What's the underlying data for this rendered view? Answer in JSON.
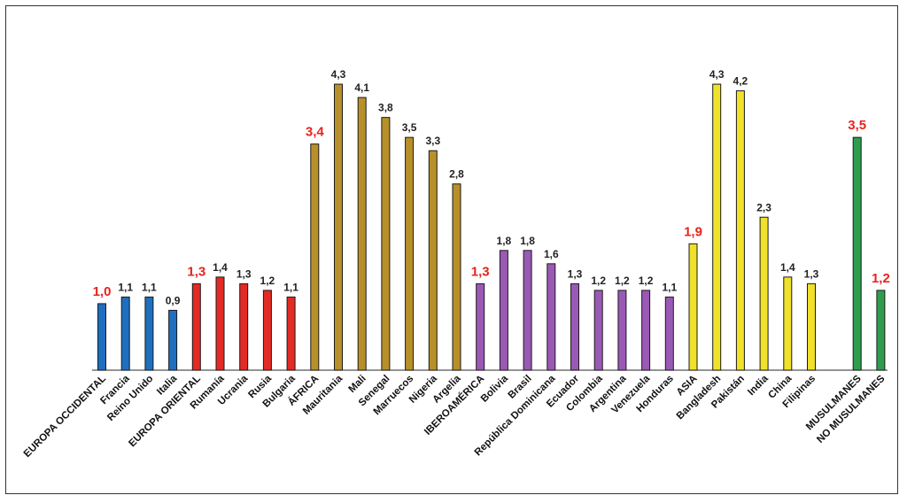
{
  "chart_data": {
    "type": "bar",
    "title": "",
    "xlabel": "",
    "ylabel": "",
    "ylim": [
      0,
      4.9
    ],
    "grid": false,
    "legend": "none",
    "groups": [
      {
        "name": "europa-occidental",
        "color": "#1f6fc0",
        "bars": [
          {
            "label": "EUROPA OCCIDENTAL",
            "value": 1.0,
            "text": "1,0",
            "aggregate": true
          },
          {
            "label": "Francia",
            "value": 1.1,
            "text": "1,1",
            "aggregate": false
          },
          {
            "label": "Reino Unido",
            "value": 1.1,
            "text": "1,1",
            "aggregate": false
          },
          {
            "label": "Italia",
            "value": 0.9,
            "text": "0,9",
            "aggregate": false
          }
        ]
      },
      {
        "name": "europa-oriental",
        "color": "#e32a24",
        "bars": [
          {
            "label": "EUROPA ORIENTAL",
            "value": 1.3,
            "text": "1,3",
            "aggregate": true
          },
          {
            "label": "Rumanía",
            "value": 1.4,
            "text": "1,4",
            "aggregate": false
          },
          {
            "label": "Ucrania",
            "value": 1.3,
            "text": "1,3",
            "aggregate": false
          },
          {
            "label": "Rusia",
            "value": 1.2,
            "text": "1,2",
            "aggregate": false
          },
          {
            "label": "Bulgaria",
            "value": 1.1,
            "text": "1,1",
            "aggregate": false
          }
        ]
      },
      {
        "name": "africa",
        "color": "#b8902a",
        "bars": [
          {
            "label": "ÁFRICA",
            "value": 3.4,
            "text": "3,4",
            "aggregate": true
          },
          {
            "label": "Mauritania",
            "value": 4.3,
            "text": "4,3",
            "aggregate": false
          },
          {
            "label": "Mali",
            "value": 4.1,
            "text": "4,1",
            "aggregate": false
          },
          {
            "label": "Senegal",
            "value": 3.8,
            "text": "3,8",
            "aggregate": false
          },
          {
            "label": "Marruecos",
            "value": 3.5,
            "text": "3,5",
            "aggregate": false
          },
          {
            "label": "Nigeria",
            "value": 3.3,
            "text": "3,3",
            "aggregate": false
          },
          {
            "label": "Argelia",
            "value": 2.8,
            "text": "2,8",
            "aggregate": false
          }
        ]
      },
      {
        "name": "iberoamerica",
        "color": "#9b59b6",
        "bars": [
          {
            "label": "IBEROAMÉRICA",
            "value": 1.3,
            "text": "1,3",
            "aggregate": true
          },
          {
            "label": "Bolivia",
            "value": 1.8,
            "text": "1,8",
            "aggregate": false
          },
          {
            "label": "Brasil",
            "value": 1.8,
            "text": "1,8",
            "aggregate": false
          },
          {
            "label": "República Dominicana",
            "value": 1.6,
            "text": "1,6",
            "aggregate": false
          },
          {
            "label": "Ecuador",
            "value": 1.3,
            "text": "1,3",
            "aggregate": false
          },
          {
            "label": "Colombia",
            "value": 1.2,
            "text": "1,2",
            "aggregate": false
          },
          {
            "label": "Argentina",
            "value": 1.2,
            "text": "1,2",
            "aggregate": false
          },
          {
            "label": "Venezuela",
            "value": 1.2,
            "text": "1,2",
            "aggregate": false
          },
          {
            "label": "Honduras",
            "value": 1.1,
            "text": "1,1",
            "aggregate": false
          }
        ]
      },
      {
        "name": "asia",
        "color": "#f0e12a",
        "bars": [
          {
            "label": "ASIA",
            "value": 1.9,
            "text": "1,9",
            "aggregate": true
          },
          {
            "label": "Bangladesh",
            "value": 4.3,
            "text": "4,3",
            "aggregate": false
          },
          {
            "label": "Pakistán",
            "value": 4.2,
            "text": "4,2",
            "aggregate": false
          },
          {
            "label": "India",
            "value": 2.3,
            "text": "2,3",
            "aggregate": false
          },
          {
            "label": "China",
            "value": 1.4,
            "text": "1,4",
            "aggregate": false
          },
          {
            "label": "Filipinas",
            "value": 1.3,
            "text": "1,3",
            "aggregate": false
          }
        ]
      },
      {
        "name": "musulmanes",
        "color": "#2e9e4e",
        "bars": [
          {
            "label": "MUSULMANES",
            "value": 3.5,
            "text": "3,5",
            "aggregate": true
          },
          {
            "label": "NO MUSULMANES",
            "value": 1.2,
            "text": "1,2",
            "aggregate": true
          }
        ]
      }
    ]
  }
}
